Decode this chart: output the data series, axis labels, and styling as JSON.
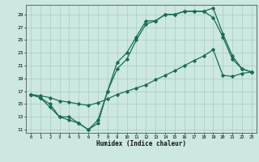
{
  "title": "",
  "xlabel": "Humidex (Indice chaleur)",
  "bg_color": "#cce8e0",
  "grid_color": "#aaccc4",
  "line_color": "#1a6b5a",
  "xlim": [
    -0.5,
    23.5
  ],
  "ylim": [
    10.5,
    30.5
  ],
  "yticks": [
    11,
    13,
    15,
    17,
    19,
    21,
    23,
    25,
    27,
    29
  ],
  "line1_x": [
    0,
    1,
    2,
    3,
    4,
    5,
    6,
    7,
    8,
    9,
    10,
    11,
    12,
    13,
    14,
    15,
    16,
    17,
    18,
    19,
    20,
    21,
    22,
    23
  ],
  "line1_y": [
    16.5,
    16.0,
    15.0,
    13.0,
    13.0,
    12.0,
    11.0,
    12.5,
    17.0,
    21.5,
    23.0,
    25.5,
    28.0,
    28.0,
    29.0,
    29.0,
    29.5,
    29.5,
    29.5,
    30.0,
    26.0,
    22.5,
    20.5,
    20.0
  ],
  "line2_x": [
    0,
    1,
    2,
    3,
    4,
    5,
    6,
    7,
    8,
    9,
    10,
    11,
    12,
    13,
    14,
    15,
    16,
    17,
    18,
    19,
    20,
    21,
    22,
    23
  ],
  "line2_y": [
    16.5,
    16.0,
    14.5,
    13.0,
    12.5,
    12.0,
    11.0,
    12.0,
    17.0,
    20.5,
    22.0,
    25.0,
    27.5,
    28.0,
    29.0,
    29.0,
    29.5,
    29.5,
    29.5,
    28.5,
    25.5,
    22.0,
    20.5,
    20.0
  ],
  "line3_x": [
    0,
    1,
    2,
    3,
    4,
    5,
    6,
    7,
    8,
    9,
    10,
    11,
    12,
    13,
    14,
    15,
    16,
    17,
    18,
    19,
    20,
    21,
    22,
    23
  ],
  "line3_y": [
    16.5,
    16.3,
    16.0,
    15.5,
    15.3,
    15.0,
    14.8,
    15.2,
    15.8,
    16.5,
    17.0,
    17.5,
    18.0,
    18.8,
    19.5,
    20.2,
    21.0,
    21.8,
    22.5,
    23.5,
    19.5,
    19.3,
    19.8,
    20.0
  ]
}
